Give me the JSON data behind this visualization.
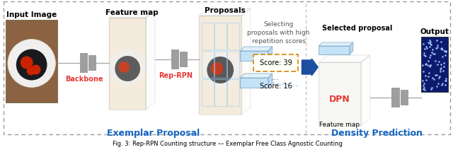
{
  "bg_color": "#ffffff",
  "dashed_border_color": "#999999",
  "left_section_label": "Exemplar Proposal",
  "right_section_label": "Density Prediction",
  "section_label_color": "#1565C0",
  "labels": {
    "input_image": "Input Image",
    "feature_map1": "Feature map",
    "proposals": "Proposals",
    "backbone": "Backbone",
    "rep_rpn": "Rep-RPN",
    "selecting_line1": "Selecting",
    "selecting_line2": "proposals with high",
    "selecting_line3": "repetition scores",
    "score_39": "Score: 39",
    "score_16": "Score: 16",
    "dots": "...",
    "selected_proposal": "Selected proposal",
    "output": "Output",
    "dpn": "DPN",
    "feature_map2": "Feature map"
  },
  "red_color": "#e53935",
  "gray_block_color": "#9e9e9e",
  "blue_arrow_color": "#1a4fa0",
  "light_blue_box": "#b8d8f0",
  "score_box_border": "#d4820a",
  "score_box_fill": "#fffef5",
  "dashed_line_color": "#90CAF9",
  "divider_color": "#bbbbbb",
  "box3d_edge": "#444444",
  "box3d_face": "#f8f4ee",
  "dpn_box_face": "#f8f8f8",
  "img_wood": "#8B6343",
  "img_plate": "#f0efed",
  "img_black": "#1a1a1e",
  "img_red": "#cc2200"
}
